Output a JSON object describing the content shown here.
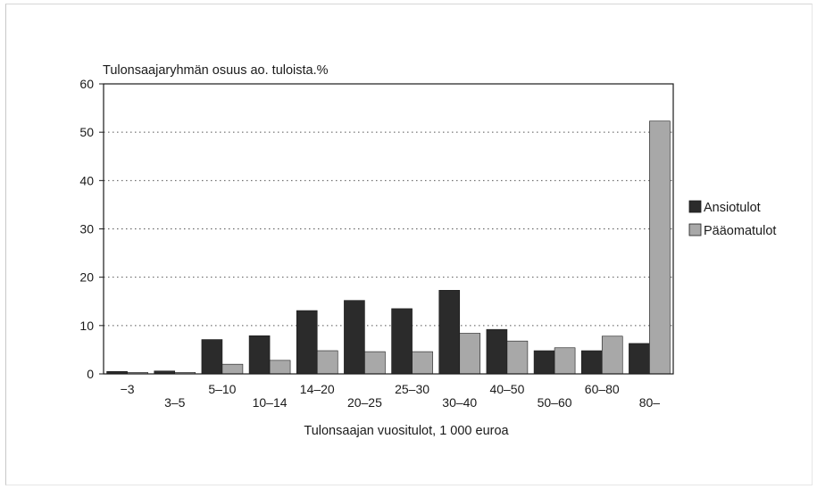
{
  "chart_data": {
    "type": "bar",
    "ylabel": "Tulonsaajaryhmän osuus ao. tuloista.%",
    "xlabel": "Tulonsaajan vuositulot, 1 000 euroa",
    "ylim": [
      0,
      60
    ],
    "yticks": [
      0,
      10,
      20,
      30,
      40,
      50,
      60
    ],
    "grid": "horizontal dotted",
    "legend_position": "right",
    "categories": [
      "−3",
      "3–5",
      "5–10",
      "10–14",
      "14–20",
      "20–25",
      "25–30",
      "30–40",
      "40–50",
      "50–60",
      "60–80",
      "80–"
    ],
    "series": [
      {
        "name": "Ansiotulot",
        "color": "#2b2b2b",
        "values": [
          0.5,
          0.6,
          7.1,
          7.9,
          13.1,
          15.2,
          13.5,
          17.3,
          9.2,
          4.8,
          4.8,
          6.3
        ]
      },
      {
        "name": "Pääomatulot",
        "color": "#a8a8a8",
        "values": [
          0.3,
          0.3,
          2.0,
          2.8,
          4.8,
          4.6,
          4.6,
          8.4,
          6.8,
          5.4,
          7.8,
          52.3
        ]
      }
    ]
  }
}
